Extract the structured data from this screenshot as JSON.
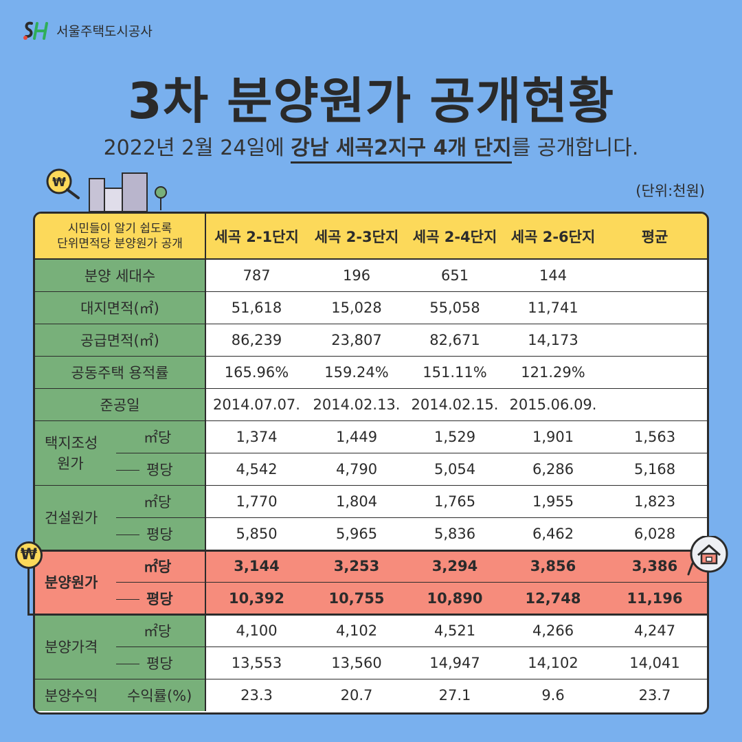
{
  "logo": {
    "mark": "SH",
    "text": "서울주택도시공사"
  },
  "title": "3차 분양원가 공개현황",
  "subtitle": {
    "pre": "2022년 2월 24일에 ",
    "highlight": "강남 세곡2지구 4개 단지",
    "post": "를 공개합니다."
  },
  "unit": "(단위:천원)",
  "badge_symbol": "₩",
  "table": {
    "corner_line1": "시민들이 알기 쉽도록",
    "corner_line2": "단위면적당 분양원가 공개",
    "columns": [
      "세곡 2-1단지",
      "세곡 2-3단지",
      "세곡 2-4단지",
      "세곡 2-6단지",
      "평균"
    ],
    "simple_rows": [
      {
        "label": "분양 세대수",
        "values": [
          "787",
          "196",
          "651",
          "144",
          ""
        ]
      },
      {
        "label": "대지면적(㎡)",
        "values": [
          "51,618",
          "15,028",
          "55,058",
          "11,741",
          ""
        ]
      },
      {
        "label": "공급면적(㎡)",
        "values": [
          "86,239",
          "23,807",
          "82,671",
          "14,173",
          ""
        ]
      },
      {
        "label": "공동주택 용적률",
        "values": [
          "165.96%",
          "159.24%",
          "151.11%",
          "121.29%",
          ""
        ]
      },
      {
        "label": "준공일",
        "values": [
          "2014.07.07.",
          "2014.02.13.",
          "2014.02.15.",
          "2015.06.09.",
          ""
        ]
      }
    ],
    "groups": [
      {
        "label_line1": "택지조성",
        "label_line2": "원가",
        "rows": [
          {
            "sub": "㎡당",
            "values": [
              "1,374",
              "1,449",
              "1,529",
              "1,901",
              "1,563"
            ]
          },
          {
            "sub": "평당",
            "values": [
              "4,542",
              "4,790",
              "5,054",
              "6,286",
              "5,168"
            ]
          }
        ]
      },
      {
        "label_line1": "건설원가",
        "label_line2": "",
        "rows": [
          {
            "sub": "㎡당",
            "values": [
              "1,770",
              "1,804",
              "1,765",
              "1,955",
              "1,823"
            ]
          },
          {
            "sub": "평당",
            "values": [
              "5,850",
              "5,965",
              "5,836",
              "6,462",
              "6,028"
            ]
          }
        ]
      },
      {
        "label_line1": "분양원가",
        "label_line2": "",
        "highlight": true,
        "rows": [
          {
            "sub": "㎡당",
            "values": [
              "3,144",
              "3,253",
              "3,294",
              "3,856",
              "3,386"
            ]
          },
          {
            "sub": "평당",
            "values": [
              "10,392",
              "10,755",
              "10,890",
              "12,748",
              "11,196"
            ]
          }
        ]
      },
      {
        "label_line1": "분양가격",
        "label_line2": "",
        "rows": [
          {
            "sub": "㎡당",
            "values": [
              "4,100",
              "4,102",
              "4,521",
              "4,266",
              "4,247"
            ]
          },
          {
            "sub": "평당",
            "values": [
              "13,553",
              "13,560",
              "14,947",
              "14,102",
              "14,041"
            ]
          }
        ]
      }
    ],
    "last_row": {
      "label": "분양수익",
      "sub": "수익률(%)",
      "values": [
        "23.3",
        "20.7",
        "27.1",
        "9.6",
        "23.7"
      ]
    }
  },
  "colors": {
    "background": "#79b0ee",
    "header": "#fcd95a",
    "label": "#78b07a",
    "highlight": "#f68c7c"
  }
}
